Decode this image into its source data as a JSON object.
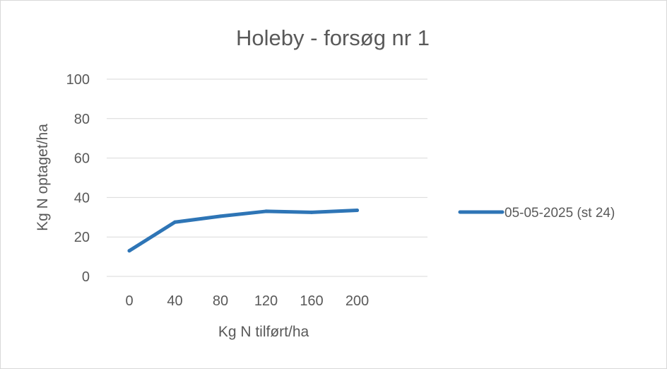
{
  "chart_data": {
    "type": "line",
    "title": "Holeby - forsøg nr 1",
    "xlabel": "Kg N tilført/ha",
    "ylabel": "Kg N optaget/ha",
    "categories": [
      "0",
      "40",
      "80",
      "120",
      "160",
      "200"
    ],
    "ylim": [
      0,
      100
    ],
    "yticks": [
      "0",
      "20",
      "40",
      "60",
      "80",
      "100"
    ],
    "grid": true,
    "legend_position": "right",
    "series": [
      {
        "name": "05-05-2025 (st 24)",
        "values": [
          13,
          27.5,
          30.5,
          33,
          32.5,
          33.5
        ],
        "color": "#2e75b6"
      }
    ]
  }
}
